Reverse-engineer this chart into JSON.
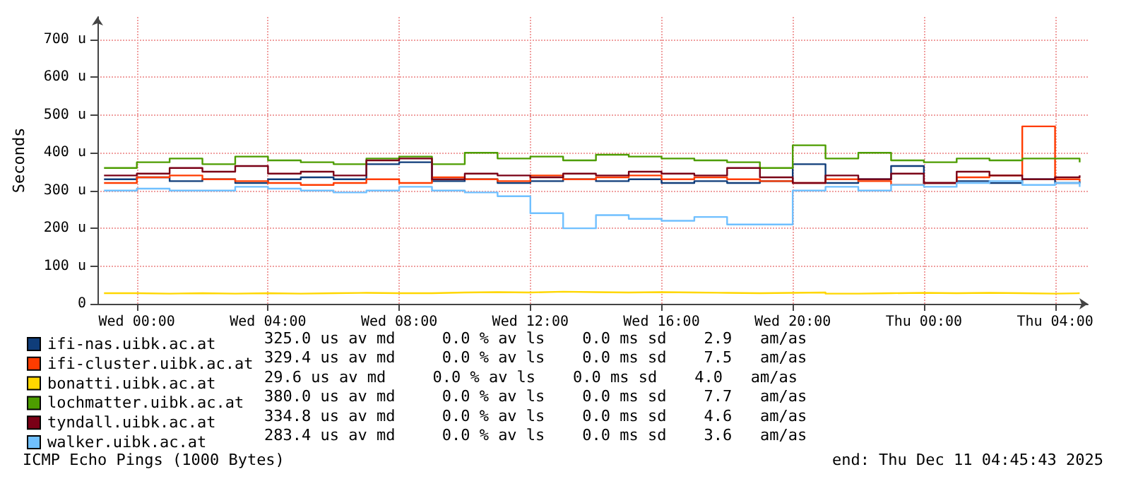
{
  "chart_data": {
    "type": "step",
    "ylabel": "Seconds",
    "x": [
      "2025-12-09T23:00",
      "2025-12-10T00:00",
      "2025-12-10T01:00",
      "2025-12-10T02:00",
      "2025-12-10T03:00",
      "2025-12-10T04:00",
      "2025-12-10T05:00",
      "2025-12-10T06:00",
      "2025-12-10T07:00",
      "2025-12-10T08:00",
      "2025-12-10T09:00",
      "2025-12-10T10:00",
      "2025-12-10T11:00",
      "2025-12-10T12:00",
      "2025-12-10T13:00",
      "2025-12-10T14:00",
      "2025-12-10T15:00",
      "2025-12-10T16:00",
      "2025-12-10T17:00",
      "2025-12-10T18:00",
      "2025-12-10T19:00",
      "2025-12-10T20:00",
      "2025-12-10T21:00",
      "2025-12-10T22:00",
      "2025-12-10T23:00",
      "2025-12-11T00:00",
      "2025-12-11T01:00",
      "2025-12-11T02:00",
      "2025-12-11T03:00",
      "2025-12-11T04:00",
      "2025-12-11T04:45"
    ],
    "series": [
      {
        "name": "ifi-nas.uibk.ac.at",
        "color": "#0f3d7a",
        "values": [
          330,
          335,
          325,
          330,
          320,
          330,
          335,
          330,
          370,
          375,
          325,
          330,
          320,
          325,
          330,
          325,
          330,
          320,
          325,
          320,
          325,
          370,
          320,
          330,
          365,
          320,
          325,
          320,
          330,
          320,
          325
        ]
      },
      {
        "name": "ifi-cluster.uibk.ac.at",
        "color": "#ff3c00",
        "values": [
          320,
          335,
          340,
          330,
          325,
          320,
          315,
          320,
          330,
          320,
          335,
          330,
          325,
          340,
          330,
          335,
          340,
          330,
          335,
          330,
          325,
          320,
          330,
          325,
          315,
          320,
          335,
          340,
          470,
          330,
          325
        ]
      },
      {
        "name": "bonatti.uibk.ac.at",
        "color": "#ffd700",
        "values": [
          28,
          27,
          28,
          27,
          28,
          27,
          28,
          29,
          28,
          28,
          30,
          31,
          30,
          32,
          31,
          30,
          31,
          30,
          29,
          28,
          29,
          30,
          27,
          28,
          29,
          28,
          29,
          28,
          27,
          28,
          28
        ]
      },
      {
        "name": "lochmatter.uibk.ac.at",
        "color": "#4d9d00",
        "values": [
          360,
          375,
          385,
          370,
          390,
          380,
          375,
          370,
          385,
          390,
          370,
          400,
          385,
          390,
          380,
          395,
          390,
          385,
          380,
          375,
          360,
          420,
          385,
          400,
          380,
          375,
          385,
          380,
          385,
          385,
          375
        ]
      },
      {
        "name": "tyndall.uibk.ac.at",
        "color": "#7a0016",
        "values": [
          340,
          345,
          360,
          350,
          365,
          345,
          350,
          340,
          380,
          385,
          330,
          345,
          340,
          335,
          345,
          340,
          350,
          345,
          340,
          360,
          335,
          320,
          340,
          330,
          345,
          320,
          350,
          340,
          330,
          335,
          340
        ]
      },
      {
        "name": "walker.uibk.ac.at",
        "color": "#70c0ff",
        "values": [
          300,
          305,
          300,
          300,
          310,
          305,
          300,
          295,
          300,
          310,
          300,
          295,
          285,
          240,
          200,
          235,
          225,
          220,
          230,
          210,
          210,
          300,
          310,
          300,
          315,
          310,
          320,
          325,
          315,
          320,
          310
        ]
      }
    ],
    "xlim": [
      "2025-12-09T22:48",
      "2025-12-11T05:00"
    ],
    "xticks": [
      {
        "value": "2025-12-10T00:00",
        "label": "Wed 00:00"
      },
      {
        "value": "2025-12-10T04:00",
        "label": "Wed 04:00"
      },
      {
        "value": "2025-12-10T08:00",
        "label": "Wed 08:00"
      },
      {
        "value": "2025-12-10T12:00",
        "label": "Wed 12:00"
      },
      {
        "value": "2025-12-10T16:00",
        "label": "Wed 16:00"
      },
      {
        "value": "2025-12-10T20:00",
        "label": "Wed 20:00"
      },
      {
        "value": "2025-12-11T00:00",
        "label": "Thu 00:00"
      },
      {
        "value": "2025-12-11T04:00",
        "label": "Thu 04:00"
      }
    ],
    "ylim": [
      0,
      760
    ],
    "yticks": [
      0,
      {
        "value": 100,
        "label": "100 u"
      },
      {
        "value": 200,
        "label": "200 u"
      },
      {
        "value": 300,
        "label": "300 u"
      },
      {
        "value": 400,
        "label": "400 u"
      },
      {
        "value": 500,
        "label": "500 u"
      },
      {
        "value": 600,
        "label": "600 u"
      },
      {
        "value": 700,
        "label": "700 u"
      }
    ],
    "grid": true,
    "legend": "bottom",
    "annotations": [
      "325.0 us av md     0.0 % av ls    0.0 ms sd    2.9   am/as",
      "329.4 us av md     0.0 % av ls    0.0 ms sd    7.5   am/as",
      "29.6 us av md     0.0 % av ls    0.0 ms sd    4.0   am/as",
      "380.0 us av md     0.0 % av ls    0.0 ms sd    7.7   am/as",
      "334.8 us av md     0.0 % av ls    0.0 ms sd    4.6   am/as",
      "283.4 us av md     0.0 % av ls    0.0 ms sd    3.6   am/as",
      "ICMP Echo Pings (1000 Bytes)",
      "end: Thu Dec 11 04:45:43 2025"
    ]
  }
}
